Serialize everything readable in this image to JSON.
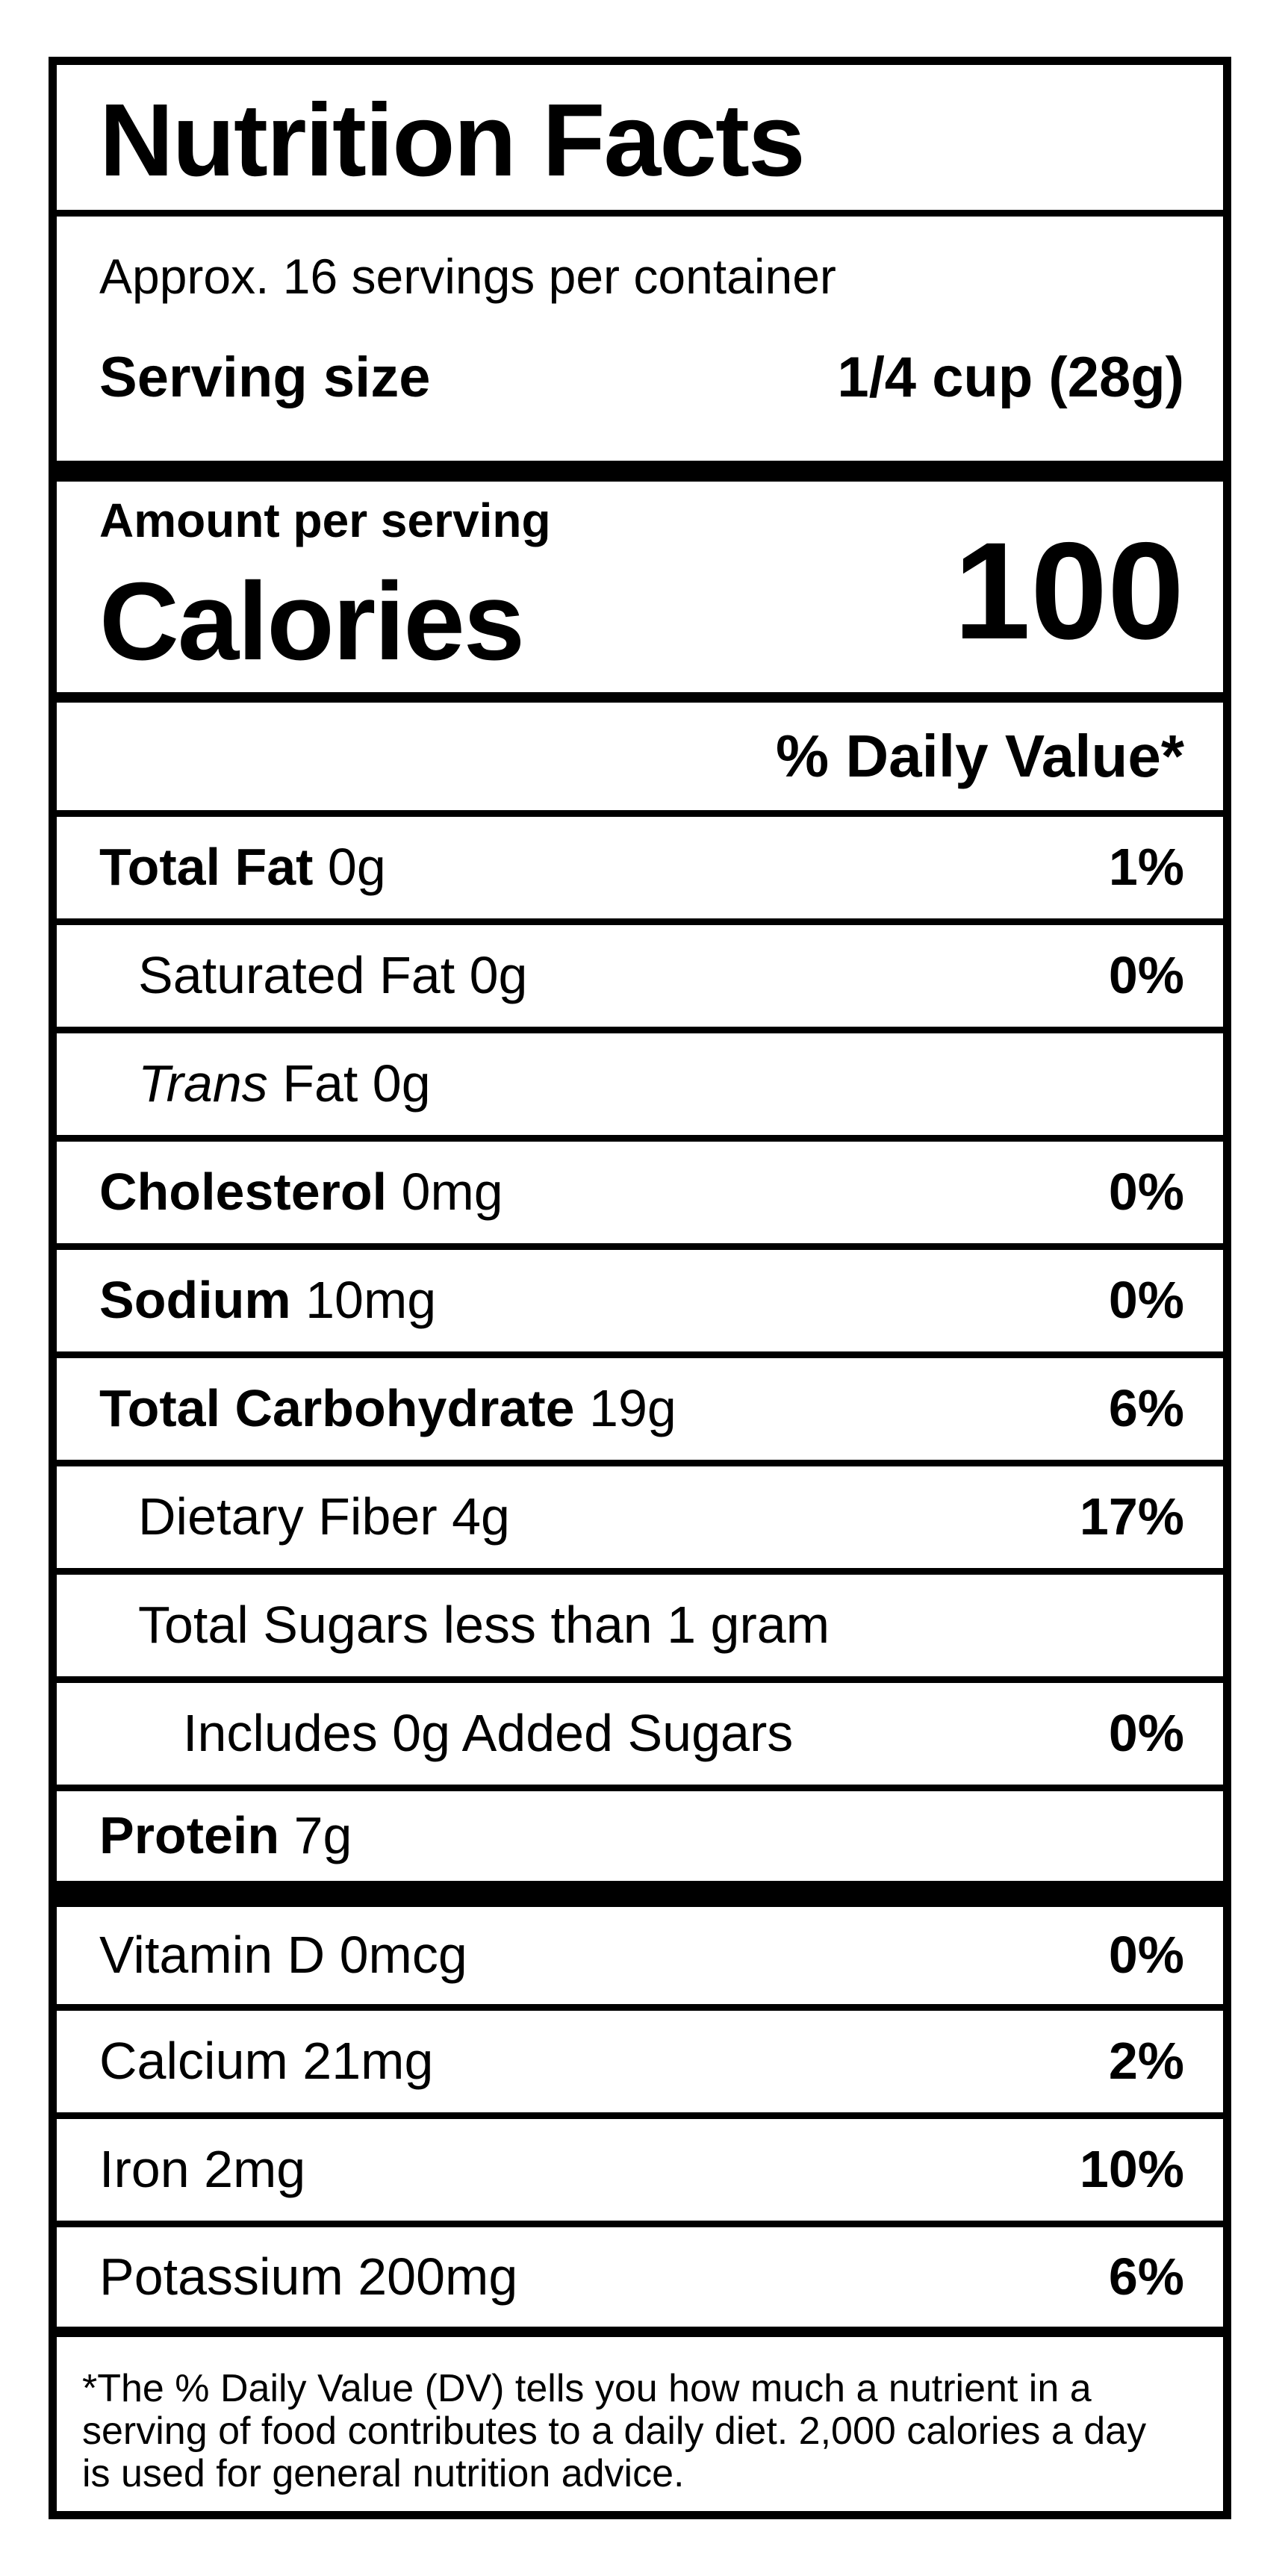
{
  "colors": {
    "text": "#000000",
    "background": "#ffffff"
  },
  "label": {
    "title": "Nutrition Facts",
    "servings_per_container": "Approx. 16 servings per container",
    "serving_size": {
      "label": "Serving size",
      "value": "1/4 cup (28g)"
    },
    "calories": {
      "eyebrow": "Amount per serving",
      "label": "Calories",
      "value": "100"
    },
    "daily_value_header": "% Daily Value*",
    "nutrients": [
      {
        "bold": "Total Fat",
        "reg": " 0g",
        "dv": "1%"
      },
      {
        "reg": "Saturated Fat 0g",
        "dv": "0%"
      },
      {
        "italic": "Trans",
        "reg": " Fat 0g"
      },
      {
        "bold": "Cholesterol",
        "reg": " 0mg",
        "dv": "0%"
      },
      {
        "bold": "Sodium",
        "reg": " 10mg",
        "dv": "0%"
      },
      {
        "bold": "Total Carbohydrate",
        "reg": " 19g",
        "dv": "6%"
      },
      {
        "reg": "Dietary Fiber 4g",
        "dv": "17%"
      },
      {
        "reg": "Total Sugars less than 1 gram"
      },
      {
        "reg": "Includes 0g Added Sugars",
        "dv": "0%"
      },
      {
        "bold": "Protein",
        "reg": " 7g"
      }
    ],
    "micronutrients": [
      {
        "reg": "Vitamin D 0mcg",
        "dv": "0%"
      },
      {
        "reg": "Calcium 21mg",
        "dv": "2%"
      },
      {
        "reg": "Iron 2mg",
        "dv": "10%"
      },
      {
        "reg": "Potassium 200mg",
        "dv": "6%"
      }
    ],
    "footnote": "*The % Daily Value (DV) tells you how much a nutrient in a serving of food contributes to a daily diet. 2,000 calories a day is used for general nutrition advice."
  }
}
